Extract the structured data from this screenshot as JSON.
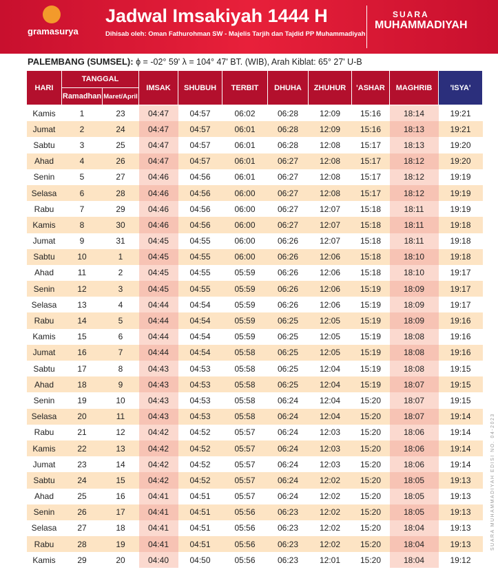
{
  "header": {
    "publisher": "gramasurya",
    "title": "Jadwal Imsakiyah 1444 H",
    "subtitle": "Dihisab oleh: Oman Fathurohman SW - Majelis Tarjih dan Tajdid PP Muhammadiyah",
    "brand_top": "SUARA",
    "brand_bottom": "MUHAMMADIYAH"
  },
  "location": {
    "name": "PALEMBANG (SUMSEL):",
    "coords": "ϕ = -02° 59'  λ = 104° 47' BT. (WIB), Arah Kiblat: 65° 27' U-B"
  },
  "side_note": "SUARA MUHAMMADIYAH EDISI NO. 04-2023",
  "table": {
    "columns": {
      "hari": "HARI",
      "tanggal": "TANGGAL",
      "ramadhan": "Ramadhan",
      "masehi": "Maret/April",
      "times": [
        "IMSAK",
        "SHUBUH",
        "TERBIT",
        "DHUHA",
        "ZHUHUR",
        "'ASHAR",
        "MAGHRIB",
        "'ISYA'"
      ]
    },
    "rows": [
      [
        "Kamis",
        "1",
        "23",
        "04:47",
        "04:57",
        "06:02",
        "06:28",
        "12:09",
        "15:16",
        "18:14",
        "19:21"
      ],
      [
        "Jumat",
        "2",
        "24",
        "04:47",
        "04:57",
        "06:01",
        "06:28",
        "12:09",
        "15:16",
        "18:13",
        "19:21"
      ],
      [
        "Sabtu",
        "3",
        "25",
        "04:47",
        "04:57",
        "06:01",
        "06:28",
        "12:08",
        "15:17",
        "18:13",
        "19:20"
      ],
      [
        "Ahad",
        "4",
        "26",
        "04:47",
        "04:57",
        "06:01",
        "06:27",
        "12:08",
        "15:17",
        "18:12",
        "19:20"
      ],
      [
        "Senin",
        "5",
        "27",
        "04:46",
        "04:56",
        "06:01",
        "06:27",
        "12:08",
        "15:17",
        "18:12",
        "19:19"
      ],
      [
        "Selasa",
        "6",
        "28",
        "04:46",
        "04:56",
        "06:00",
        "06:27",
        "12:08",
        "15:17",
        "18:12",
        "19:19"
      ],
      [
        "Rabu",
        "7",
        "29",
        "04:46",
        "04:56",
        "06:00",
        "06:27",
        "12:07",
        "15:18",
        "18:11",
        "19:19"
      ],
      [
        "Kamis",
        "8",
        "30",
        "04:46",
        "04:56",
        "06:00",
        "06:27",
        "12:07",
        "15:18",
        "18:11",
        "19:18"
      ],
      [
        "Jumat",
        "9",
        "31",
        "04:45",
        "04:55",
        "06:00",
        "06:26",
        "12:07",
        "15:18",
        "18:11",
        "19:18"
      ],
      [
        "Sabtu",
        "10",
        "1",
        "04:45",
        "04:55",
        "06:00",
        "06:26",
        "12:06",
        "15:18",
        "18:10",
        "19:18"
      ],
      [
        "Ahad",
        "11",
        "2",
        "04:45",
        "04:55",
        "05:59",
        "06:26",
        "12:06",
        "15:18",
        "18:10",
        "19:17"
      ],
      [
        "Senin",
        "12",
        "3",
        "04:45",
        "04:55",
        "05:59",
        "06:26",
        "12:06",
        "15:19",
        "18:09",
        "19:17"
      ],
      [
        "Selasa",
        "13",
        "4",
        "04:44",
        "04:54",
        "05:59",
        "06:26",
        "12:06",
        "15:19",
        "18:09",
        "19:17"
      ],
      [
        "Rabu",
        "14",
        "5",
        "04:44",
        "04:54",
        "05:59",
        "06:25",
        "12:05",
        "15:19",
        "18:09",
        "19:16"
      ],
      [
        "Kamis",
        "15",
        "6",
        "04:44",
        "04:54",
        "05:59",
        "06:25",
        "12:05",
        "15:19",
        "18:08",
        "19:16"
      ],
      [
        "Jumat",
        "16",
        "7",
        "04:44",
        "04:54",
        "05:58",
        "06:25",
        "12:05",
        "15:19",
        "18:08",
        "19:16"
      ],
      [
        "Sabtu",
        "17",
        "8",
        "04:43",
        "04:53",
        "05:58",
        "06:25",
        "12:04",
        "15:19",
        "18:08",
        "19:15"
      ],
      [
        "Ahad",
        "18",
        "9",
        "04:43",
        "04:53",
        "05:58",
        "06:25",
        "12:04",
        "15:19",
        "18:07",
        "19:15"
      ],
      [
        "Senin",
        "19",
        "10",
        "04:43",
        "04:53",
        "05:58",
        "06:24",
        "12:04",
        "15:20",
        "18:07",
        "19:15"
      ],
      [
        "Selasa",
        "20",
        "11",
        "04:43",
        "04:53",
        "05:58",
        "06:24",
        "12:04",
        "15:20",
        "18:07",
        "19:14"
      ],
      [
        "Rabu",
        "21",
        "12",
        "04:42",
        "04:52",
        "05:57",
        "06:24",
        "12:03",
        "15:20",
        "18:06",
        "19:14"
      ],
      [
        "Kamis",
        "22",
        "13",
        "04:42",
        "04:52",
        "05:57",
        "06:24",
        "12:03",
        "15:20",
        "18:06",
        "19:14"
      ],
      [
        "Jumat",
        "23",
        "14",
        "04:42",
        "04:52",
        "05:57",
        "06:24",
        "12:03",
        "15:20",
        "18:06",
        "19:14"
      ],
      [
        "Sabtu",
        "24",
        "15",
        "04:42",
        "04:52",
        "05:57",
        "06:24",
        "12:02",
        "15:20",
        "18:05",
        "19:13"
      ],
      [
        "Ahad",
        "25",
        "16",
        "04:41",
        "04:51",
        "05:57",
        "06:24",
        "12:02",
        "15:20",
        "18:05",
        "19:13"
      ],
      [
        "Senin",
        "26",
        "17",
        "04:41",
        "04:51",
        "05:56",
        "06:23",
        "12:02",
        "15:20",
        "18:05",
        "19:13"
      ],
      [
        "Selasa",
        "27",
        "18",
        "04:41",
        "04:51",
        "05:56",
        "06:23",
        "12:02",
        "15:20",
        "18:04",
        "19:13"
      ],
      [
        "Rabu",
        "28",
        "19",
        "04:41",
        "04:51",
        "05:56",
        "06:23",
        "12:02",
        "15:20",
        "18:04",
        "19:13"
      ],
      [
        "Kamis",
        "29",
        "20",
        "04:40",
        "04:50",
        "05:56",
        "06:23",
        "12:01",
        "15:20",
        "18:04",
        "19:12"
      ]
    ]
  }
}
